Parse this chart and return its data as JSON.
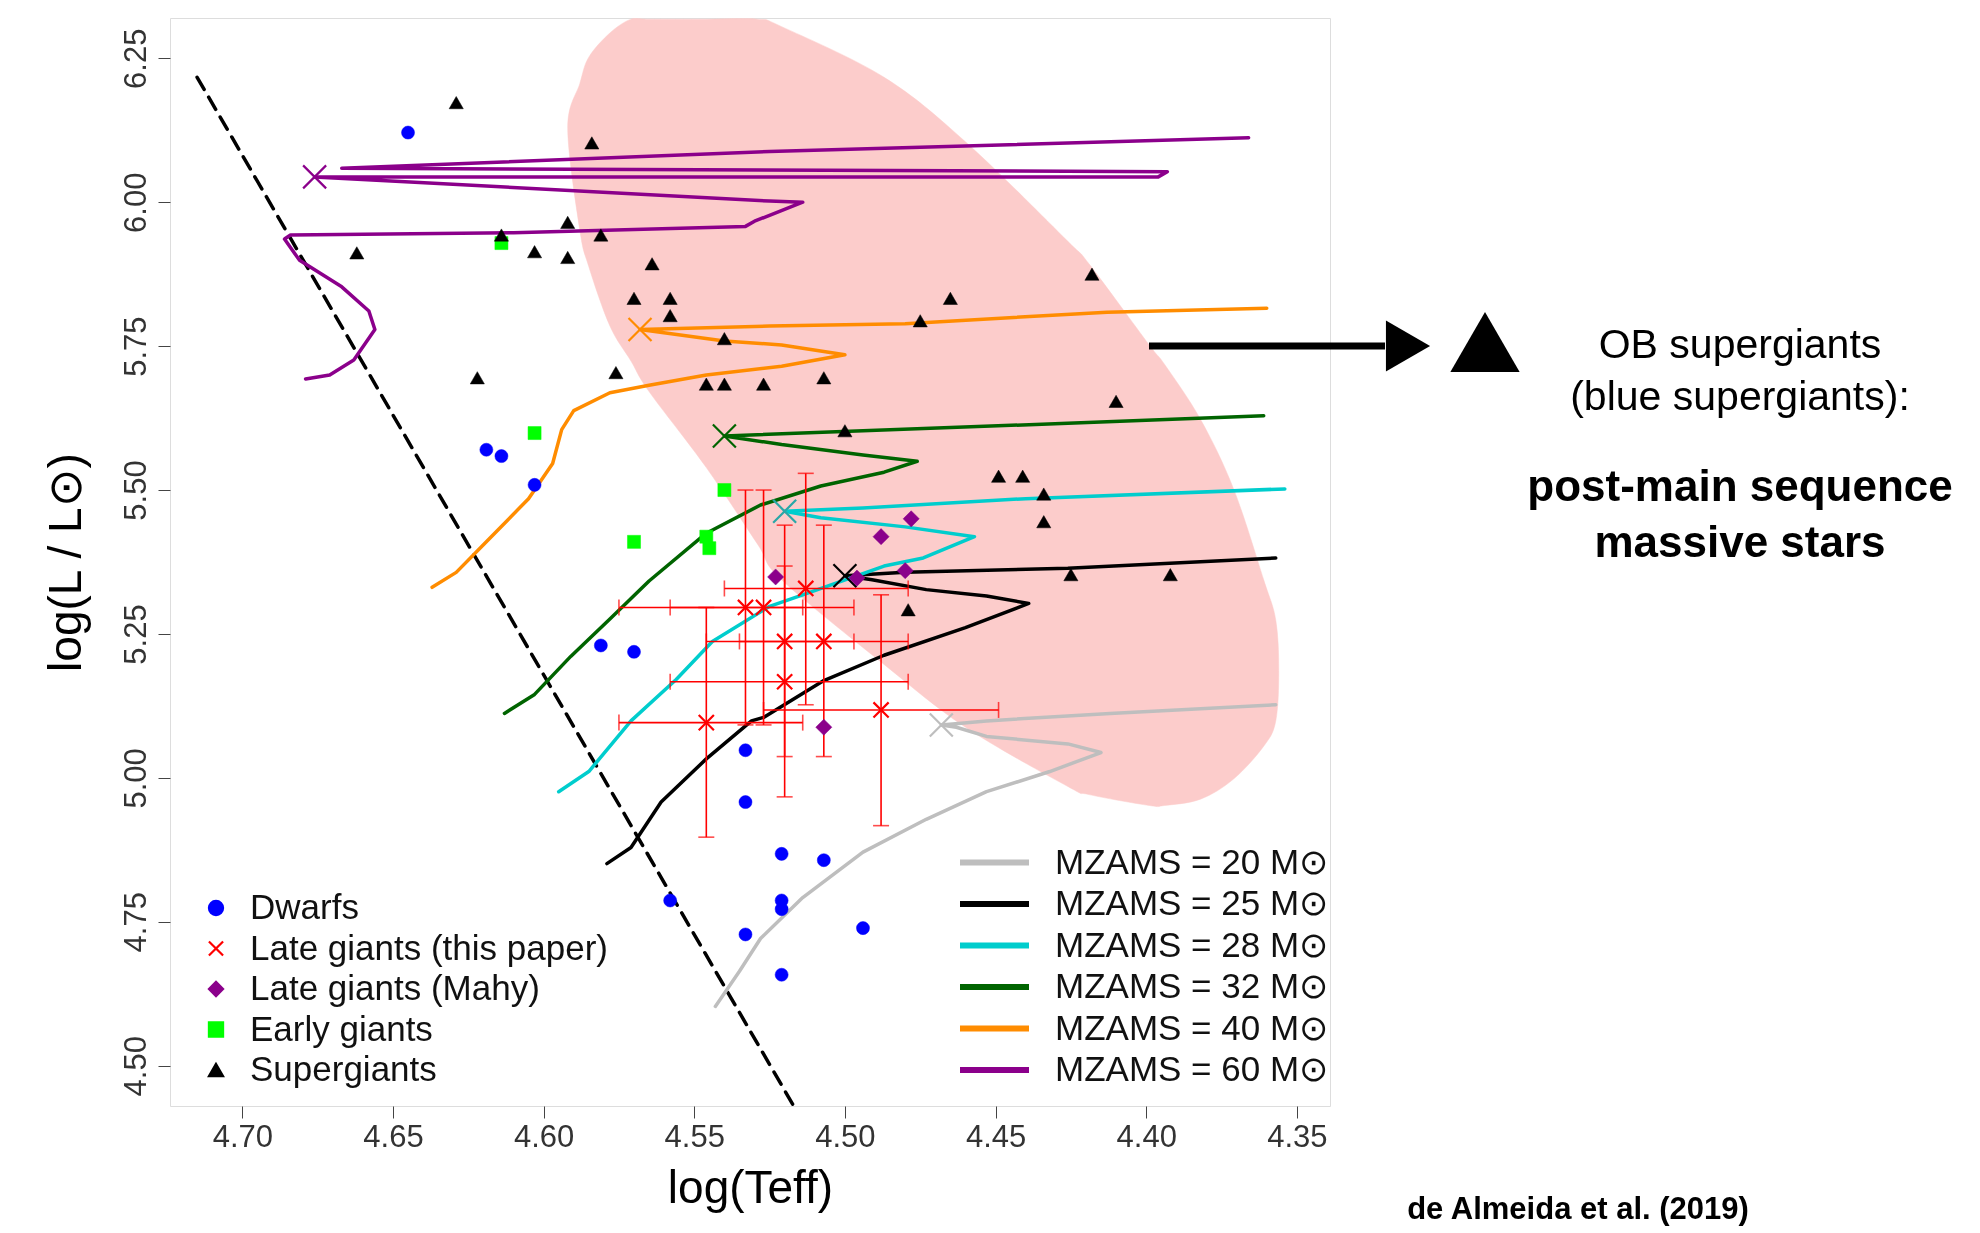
{
  "chart_data": {
    "type": "scatter",
    "xlabel": "log(Teff)",
    "ylabel": "log(L / L⊙)",
    "xlim": [
      4.724,
      4.339
    ],
    "ylim": [
      4.43,
      6.32
    ],
    "xticks": [
      {
        "value": 4.7,
        "label": "4.70"
      },
      4.65,
      {
        "value": 4.6,
        "label": "4.60"
      },
      4.55,
      {
        "value": 4.5,
        "label": "4.50"
      },
      4.45,
      {
        "value": 4.4,
        "label": "4.40"
      },
      4.35
    ],
    "yticks": [
      {
        "value": 4.5,
        "label": "4.50"
      },
      4.75,
      {
        "value": 5.0,
        "label": "5.00"
      },
      5.25,
      {
        "value": 5.5,
        "label": "5.50"
      },
      5.75,
      {
        "value": 6.0,
        "label": "6.00"
      },
      6.25
    ],
    "grid": false,
    "legend": "bottom",
    "series": [
      {
        "type": "area",
        "color": "#fccccb",
        "x": [
          4.592,
          4.588,
          4.585,
          4.578,
          4.571,
          4.565,
          4.546,
          4.529,
          4.521,
          4.487,
          4.46,
          4.426,
          4.419,
          4.399,
          4.394,
          4.382,
          4.371,
          4.361,
          4.357,
          4.356,
          4.357,
          4.361,
          4.371,
          4.382,
          4.394,
          4.399,
          4.419,
          4.426,
          4.46,
          4.487,
          4.521,
          4.529,
          4.546,
          4.565,
          4.571,
          4.578,
          4.585,
          4.588
        ],
        "values": [
          6.129,
          6.206,
          6.252,
          6.294,
          6.318,
          6.318,
          6.318,
          6.318,
          6.305,
          6.217,
          6.105,
          5.932,
          5.893,
          5.752,
          5.719,
          5.623,
          5.502,
          5.344,
          5.274,
          5.186,
          5.099,
          5.055,
          4.998,
          4.963,
          4.952,
          4.952,
          4.971,
          4.985,
          5.088,
          5.197,
          5.344,
          5.406,
          5.539,
          5.671,
          5.724,
          5.785,
          5.888,
          5.952
        ]
      },
      {
        "type": "line",
        "color": "#000000",
        "line_style": "dashed",
        "x": [
          4.715,
          4.517
        ],
        "values": [
          6.217,
          4.43
        ]
      },
      {
        "type": "line",
        "name": "MZAMS = 20 M⊙",
        "color": "#bebebe",
        "x": [
          4.543,
          4.535,
          4.528,
          4.514,
          4.494,
          4.473,
          4.453,
          4.432,
          4.415,
          4.426,
          4.453,
          4.463,
          4.468,
          4.453,
          4.412,
          4.357
        ],
        "values": [
          4.603,
          4.664,
          4.721,
          4.792,
          4.871,
          4.928,
          4.976,
          5.011,
          5.044,
          5.059,
          5.072,
          5.088,
          5.092,
          5.099,
          5.112,
          5.127
        ]
      },
      {
        "type": "line",
        "name": "MZAMS = 25 M⊙",
        "color": "#000000",
        "x": [
          4.579,
          4.571,
          4.561,
          4.546,
          4.531,
          4.527,
          4.507,
          4.487,
          4.46,
          4.439,
          4.453,
          4.473,
          4.491,
          4.5,
          4.48,
          4.426,
          4.357
        ],
        "values": [
          4.851,
          4.879,
          4.958,
          5.033,
          5.099,
          5.105,
          5.169,
          5.213,
          5.261,
          5.303,
          5.316,
          5.327,
          5.344,
          5.351,
          5.357,
          5.364,
          5.382
        ]
      },
      {
        "type": "line",
        "name": "MZAMS = 28 M⊙",
        "color": "#00cdcd",
        "x": [
          4.595,
          4.585,
          4.571,
          4.556,
          4.544,
          4.525,
          4.514,
          4.487,
          4.474,
          4.457,
          4.48,
          4.508,
          4.52,
          4.494,
          4.44,
          4.354
        ],
        "values": [
          4.976,
          5.011,
          5.099,
          5.171,
          5.237,
          5.298,
          5.318,
          5.368,
          5.382,
          5.419,
          5.436,
          5.452,
          5.463,
          5.469,
          5.485,
          5.502
        ]
      },
      {
        "type": "line",
        "name": "MZAMS = 32 M⊙",
        "color": "#006400",
        "x": [
          4.613,
          4.603,
          4.591,
          4.578,
          4.565,
          4.546,
          4.528,
          4.508,
          4.487,
          4.476,
          4.494,
          4.521,
          4.54,
          4.494,
          4.426,
          4.361
        ],
        "values": [
          5.112,
          5.145,
          5.211,
          5.276,
          5.342,
          5.425,
          5.474,
          5.507,
          5.531,
          5.55,
          5.561,
          5.579,
          5.594,
          5.603,
          5.616,
          5.629
        ]
      },
      {
        "type": "line",
        "name": "MZAMS = 40 M⊙",
        "color": "#ff8c00",
        "x": [
          4.637,
          4.629,
          4.619,
          4.605,
          4.597,
          4.594,
          4.59,
          4.578,
          4.565,
          4.546,
          4.521,
          4.5,
          4.521,
          4.54,
          4.568,
          4.525,
          4.48,
          4.413,
          4.36
        ],
        "values": [
          5.331,
          5.357,
          5.41,
          5.485,
          5.546,
          5.605,
          5.638,
          5.669,
          5.682,
          5.7,
          5.715,
          5.735,
          5.752,
          5.759,
          5.779,
          5.785,
          5.789,
          5.809,
          5.816
        ]
      },
      {
        "type": "line",
        "name": "MZAMS = 60 M⊙",
        "color": "#8b008b",
        "x": [
          4.679,
          4.671,
          4.663,
          4.656,
          4.658,
          4.667,
          4.681,
          4.686,
          4.684,
          4.61,
          4.533,
          4.53,
          4.514,
          4.525,
          4.676,
          4.396,
          4.393,
          4.667,
          4.525,
          4.366
        ],
        "values": [
          5.693,
          5.7,
          5.726,
          5.779,
          5.811,
          5.853,
          5.899,
          5.936,
          5.943,
          5.947,
          5.958,
          5.967,
          6.0,
          6.002,
          6.044,
          6.044,
          6.053,
          6.059,
          6.088,
          6.112
        ]
      },
      {
        "marker": "cross",
        "x": [
          4.676,
          4.568,
          4.54,
          4.52,
          4.5,
          4.468
        ],
        "values": [
          6.044,
          5.779,
          5.594,
          5.463,
          5.351,
          5.092
        ],
        "colors": [
          "#8b008b",
          "#ff8c00",
          "#006400",
          "#2aa7a7",
          "#000000",
          "#bebebe"
        ]
      },
      {
        "name": "Dwarfs",
        "marker": "circle",
        "color": "#0000ff",
        "x": [
          4.645,
          4.619,
          4.614,
          4.603,
          4.581,
          4.57,
          4.533,
          4.533,
          4.521,
          4.507,
          4.521,
          4.521,
          4.558,
          4.533,
          4.494,
          4.521
        ],
        "values": [
          6.121,
          5.57,
          5.559,
          5.509,
          5.23,
          5.219,
          5.048,
          4.958,
          4.868,
          4.857,
          4.787,
          4.772,
          4.787,
          4.728,
          4.739,
          4.658
        ]
      },
      {
        "name": "Late giants (this paper)",
        "marker": "cross",
        "color": "#ff0000",
        "x": [
          4.513,
          4.533,
          4.527,
          4.52,
          4.507,
          4.52,
          4.546,
          4.488
        ],
        "values": [
          5.329,
          5.296,
          5.296,
          5.237,
          5.237,
          5.167,
          5.096,
          5.118
        ],
        "errors": [
          [
            5.127,
            5.529
          ],
          [
            5.092,
            5.5
          ],
          [
            5.092,
            5.5
          ],
          [
            5.037,
            5.439
          ],
          [
            5.037,
            5.439
          ],
          [
            4.967,
            5.368
          ],
          [
            4.897,
            5.296
          ],
          [
            4.917,
            5.318
          ]
        ],
        "xerrors": [
          [
            4.479,
            4.54
          ],
          [
            4.514,
            4.575
          ],
          [
            4.497,
            4.558
          ],
          [
            4.497,
            4.546
          ],
          [
            4.479,
            4.535
          ],
          [
            4.479,
            4.558
          ],
          [
            4.514,
            4.575
          ],
          [
            4.449,
            4.527
          ]
        ]
      },
      {
        "name": "Late giants (Mahy)",
        "marker": "diamond",
        "color": "#8b008b",
        "x": [
          4.523,
          4.496,
          4.48,
          4.478,
          4.488,
          4.507
        ],
        "values": [
          5.349,
          5.347,
          5.36,
          5.45,
          5.419,
          5.088
        ]
      },
      {
        "name": "Early giants",
        "marker": "square",
        "color": "#00ff00",
        "x": [
          4.614,
          4.603,
          4.54,
          4.57,
          4.546,
          4.545
        ],
        "values": [
          5.929,
          5.599,
          5.5,
          5.41,
          5.419,
          5.399
        ]
      },
      {
        "name": "Supergiants",
        "marker": "triangle",
        "color": "#000000",
        "x": [
          4.629,
          4.584,
          4.662,
          4.614,
          4.603,
          4.592,
          4.592,
          4.581,
          4.564,
          4.57,
          4.558,
          4.558,
          4.622,
          4.576,
          4.54,
          4.546,
          4.54,
          4.527,
          4.507,
          4.5,
          4.475,
          4.465,
          4.418,
          4.41,
          4.449,
          4.441,
          4.434,
          4.434,
          4.479,
          4.425,
          4.392
        ],
        "values": [
          6.173,
          6.103,
          5.912,
          5.943,
          5.914,
          5.965,
          5.904,
          5.943,
          5.893,
          5.833,
          5.833,
          5.803,
          5.695,
          5.704,
          5.763,
          5.684,
          5.684,
          5.684,
          5.695,
          5.603,
          5.794,
          5.833,
          5.875,
          5.654,
          5.524,
          5.524,
          5.493,
          5.445,
          5.292,
          5.353,
          5.353
        ]
      }
    ],
    "annotations": [
      "OB supergiants\n(blue supergiants):",
      "post-main sequence\nmassive stars",
      "de Almeida et al. (2019)"
    ]
  }
}
